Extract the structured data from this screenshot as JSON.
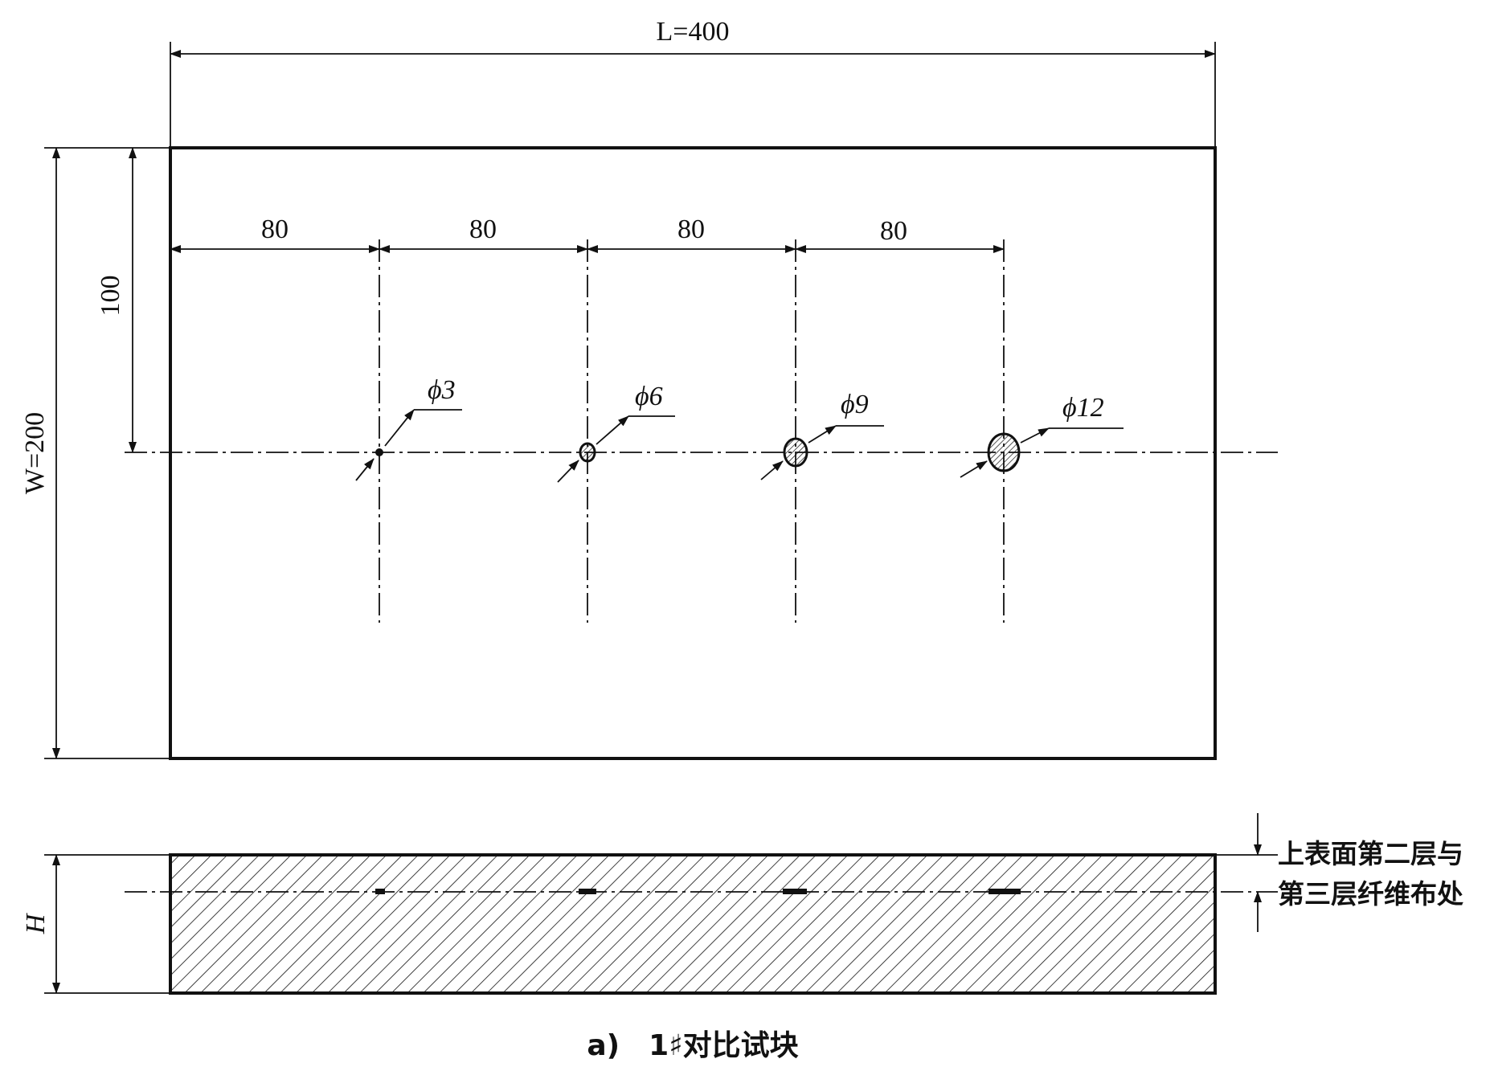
{
  "diagram": {
    "length_label": "L=400",
    "width_label": "W=200",
    "height_label": "H",
    "row_offset_label": "100",
    "spacing_labels": [
      "80",
      "80",
      "80",
      "80"
    ],
    "holes": [
      {
        "label": "ϕ3",
        "diameter": 3
      },
      {
        "label": "ϕ6",
        "diameter": 6
      },
      {
        "label": "ϕ9",
        "diameter": 9
      },
      {
        "label": "ϕ12",
        "diameter": 12
      }
    ],
    "layer_note_line1": "上表面第二层与",
    "layer_note_line2": "第三层纤维布处",
    "caption": "a)　1♯对比试块"
  }
}
